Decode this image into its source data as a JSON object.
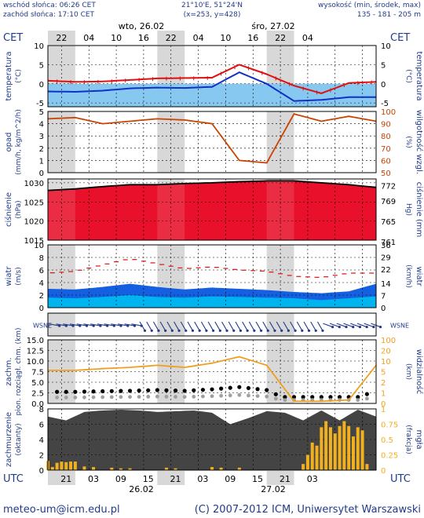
{
  "header": {
    "sunrise": "wschód słońca: 06:26 CET",
    "sunset": "zachód słońca: 17:10 CET",
    "coords": "21°10'E, 51°24'N",
    "grid": "(x=253,  y=428)",
    "height_title": "wysokość (min, środek, max)",
    "height_values": "135 - 181 - 205 m",
    "tz_top": "CET",
    "tz_bottom": "UTC",
    "day1": "wto, 26.02",
    "day2": "śro, 27.02",
    "top_ticks": [
      "22",
      "04",
      "10",
      "16",
      "22",
      "04",
      "10",
      "16",
      "22",
      "04"
    ],
    "bottom_ticks": [
      "21",
      "03",
      "09",
      "15",
      "21",
      "03",
      "09",
      "15",
      "21",
      "03"
    ],
    "bottom_date1": "26.02",
    "bottom_date2": "27.02"
  },
  "footer": {
    "email": "meteo-um@icm.edu.pl",
    "copyright": "(C) 2007-2012 ICM, Uniwersytet Warszawski"
  },
  "colors": {
    "frame": "#000000",
    "night": "#d8d8d8",
    "temp_red": "#e01010",
    "temp_blue": "#1030c8",
    "light_blue": "#87c8f0",
    "pressure_red": "#e8102a",
    "wind_blue": "#1560e0",
    "wind_cyan": "#00b4f0",
    "humidity_brown": "#c84400",
    "visibility_orange": "#f0a020",
    "cloud_dark": "#444444",
    "fog_orange": "#f0b020",
    "label_blue": "#223a8a"
  },
  "chart_data": [
    {
      "type": "line",
      "id": "temperature",
      "ylabel": "temperatura (°C)",
      "ylabel_right": "temperatura (°C)",
      "ylim": [
        -6,
        10
      ],
      "yticks": [
        -5,
        0,
        5,
        10
      ],
      "x_hours": [
        0,
        6,
        12,
        18,
        24,
        30,
        36,
        42,
        48,
        54,
        60,
        66,
        72
      ],
      "series": [
        {
          "values": [
            0.8,
            0.5,
            0.6,
            1.0,
            1.4,
            1.5,
            1.6,
            5.0,
            2.5,
            -0.5,
            -2.5,
            0.2,
            0.5
          ]
        },
        {
          "values": [
            -2.0,
            -2.1,
            -1.8,
            -1.2,
            -1.0,
            -1.1,
            -0.8,
            3.0,
            0.0,
            -4.5,
            -4.2,
            -3.5,
            -3.5
          ]
        }
      ]
    },
    {
      "type": "line",
      "id": "precip_humidity",
      "ylabel": "opad (mm/h, kg/m^2/h)",
      "ylabel_right": "wilgotność wzgl. (%)",
      "ylim": [
        0,
        5
      ],
      "yticks": [
        0,
        1,
        2,
        3,
        4,
        5
      ],
      "yticks_right": [
        50,
        60,
        70,
        80,
        90,
        100
      ],
      "humidity": {
        "x_hours": [
          0,
          6,
          12,
          18,
          24,
          30,
          36,
          42,
          48,
          54,
          60,
          66,
          72
        ],
        "values": [
          94,
          95,
          90,
          92,
          94,
          93,
          90,
          60,
          58,
          98,
          92,
          96,
          92
        ]
      }
    },
    {
      "type": "area",
      "id": "pressure",
      "ylabel": "ciśnienie (hPa)",
      "ylabel_right": "ciśnienie (mm Hg)",
      "ylim": [
        1015,
        1031
      ],
      "yticks": [
        1015,
        1020,
        1025,
        1030
      ],
      "yticks_right": [
        761,
        765,
        769,
        772
      ],
      "x_hours": [
        0,
        6,
        12,
        18,
        24,
        30,
        36,
        42,
        48,
        54,
        60,
        66,
        72
      ],
      "values": [
        1028.0,
        1028.4,
        1029.0,
        1029.5,
        1029.5,
        1029.8,
        1030.0,
        1030.3,
        1030.5,
        1030.5,
        1030.0,
        1029.5,
        1028.8
      ]
    },
    {
      "type": "area",
      "id": "wind",
      "ylabel": "wiatr (m/s)",
      "ylabel_right": "wiatr (km/h)",
      "ylim": [
        0,
        10
      ],
      "yticks": [
        0,
        2,
        4,
        6,
        8,
        10
      ],
      "yticks_right": [
        0,
        7,
        14,
        22,
        29,
        36
      ],
      "x_hours": [
        0,
        6,
        12,
        18,
        24,
        30,
        36,
        42,
        48,
        54,
        60,
        66,
        72
      ],
      "mean": [
        3.0,
        2.9,
        3.3,
        3.8,
        3.3,
        2.9,
        3.2,
        3.0,
        2.8,
        2.5,
        2.3,
        2.6,
        3.8
      ],
      "gust_min": [
        1.6,
        1.5,
        1.7,
        2.0,
        1.7,
        1.6,
        1.8,
        1.7,
        1.6,
        1.5,
        1.2,
        1.5,
        1.8
      ],
      "gust": [
        5.5,
        5.8,
        6.8,
        7.8,
        7.0,
        6.2,
        6.5,
        6.0,
        5.8,
        5.0,
        4.8,
        5.5,
        5.5
      ]
    },
    {
      "type": "line",
      "id": "visibility",
      "ylabel": "zachm. pion. rozciągł. chm. (km)",
      "ylabel_right": "widzialność (km)",
      "ylim": [
        0,
        15
      ],
      "yticks": [
        0,
        2.5,
        5.0,
        7.5,
        10.0,
        12.5,
        15.0
      ],
      "yticks_right": [
        0,
        1,
        2,
        5,
        10,
        20,
        100
      ],
      "x_hours": [
        0,
        6,
        12,
        18,
        24,
        30,
        36,
        42,
        48,
        54,
        60,
        66,
        72
      ],
      "visibility": [
        7.8,
        7.8,
        8.2,
        8.5,
        9.0,
        8.5,
        9.5,
        11.0,
        9.0,
        0.5,
        0.5,
        0.8,
        9.0
      ]
    },
    {
      "type": "area",
      "id": "clouds",
      "ylabel": "zachmurzenie (oktanty)",
      "ylabel_right": "mgła (frakcja)",
      "ylim": [
        0,
        8
      ],
      "yticks": [
        0,
        2,
        4,
        6,
        8
      ],
      "yticks_right": [
        0,
        0.25,
        0.5,
        0.75,
        1
      ],
      "x_hours": [
        0,
        4,
        8,
        12,
        16,
        20,
        24,
        28,
        32,
        36,
        40,
        44,
        48,
        52,
        56,
        60,
        64,
        68,
        72
      ],
      "values": [
        7.0,
        6.5,
        7.6,
        7.8,
        7.9,
        7.8,
        7.6,
        7.7,
        7.8,
        7.5,
        6.0,
        6.8,
        7.7,
        7.5,
        6.5,
        7.8,
        6.5,
        7.9,
        7.0
      ],
      "fog_x_hours": [
        0,
        1,
        2,
        3,
        4,
        5,
        6,
        8,
        10,
        14,
        16,
        18,
        26,
        28,
        36,
        38,
        42,
        56,
        57,
        58,
        59,
        60,
        61,
        62,
        63,
        64,
        65,
        66,
        67,
        68,
        69,
        70
      ],
      "fog": [
        0.15,
        0.05,
        0.12,
        0.14,
        0.13,
        0.14,
        0.14,
        0.06,
        0.05,
        0.04,
        0.03,
        0.03,
        0.04,
        0.03,
        0.05,
        0.04,
        0.04,
        0.1,
        0.25,
        0.45,
        0.4,
        0.7,
        0.8,
        0.7,
        0.6,
        0.72,
        0.8,
        0.72,
        0.55,
        0.7,
        0.65,
        0.1
      ]
    }
  ]
}
